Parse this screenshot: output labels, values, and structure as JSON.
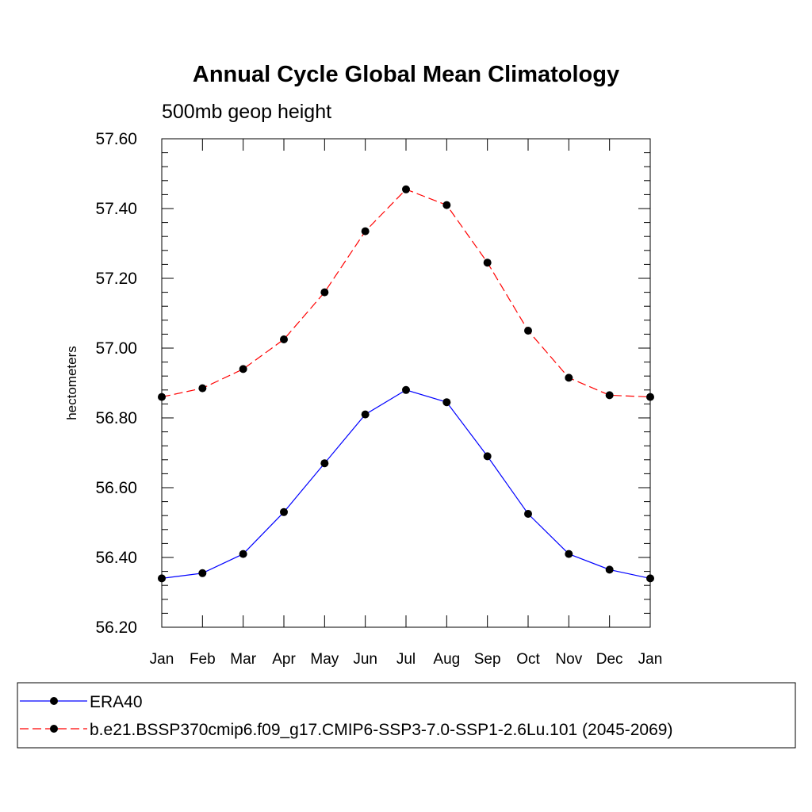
{
  "chart_data": {
    "type": "line",
    "title": "Annual Cycle Global Mean Climatology",
    "subtitle": "500mb geop height",
    "ylabel": "hectometers",
    "xlabel": "",
    "categories": [
      "Jan",
      "Feb",
      "Mar",
      "Apr",
      "May",
      "Jun",
      "Jul",
      "Aug",
      "Sep",
      "Oct",
      "Nov",
      "Dec",
      "Jan"
    ],
    "ylim": [
      56.2,
      57.6
    ],
    "yticks": [
      "56.20",
      "56.40",
      "56.60",
      "56.80",
      "57.00",
      "57.20",
      "57.40",
      "57.60"
    ],
    "legend_position": "bottom",
    "series": [
      {
        "name": "ERA40",
        "color": "#0000ff",
        "style": "solid",
        "marker": "filled-circle",
        "values": [
          56.34,
          56.355,
          56.41,
          56.53,
          56.67,
          56.81,
          56.88,
          56.845,
          56.69,
          56.525,
          56.41,
          56.365,
          56.34
        ]
      },
      {
        "name": "b.e21.BSSP370cmip6.f09_g17.CMIP6-SSP3-7.0-SSP1-2.6Lu.101 (2045-2069)",
        "color": "#ff0000",
        "style": "dashed",
        "marker": "filled-circle",
        "values": [
          56.86,
          56.885,
          56.94,
          57.025,
          57.16,
          57.335,
          57.455,
          57.41,
          57.245,
          57.05,
          56.915,
          56.865,
          56.86
        ]
      }
    ]
  }
}
